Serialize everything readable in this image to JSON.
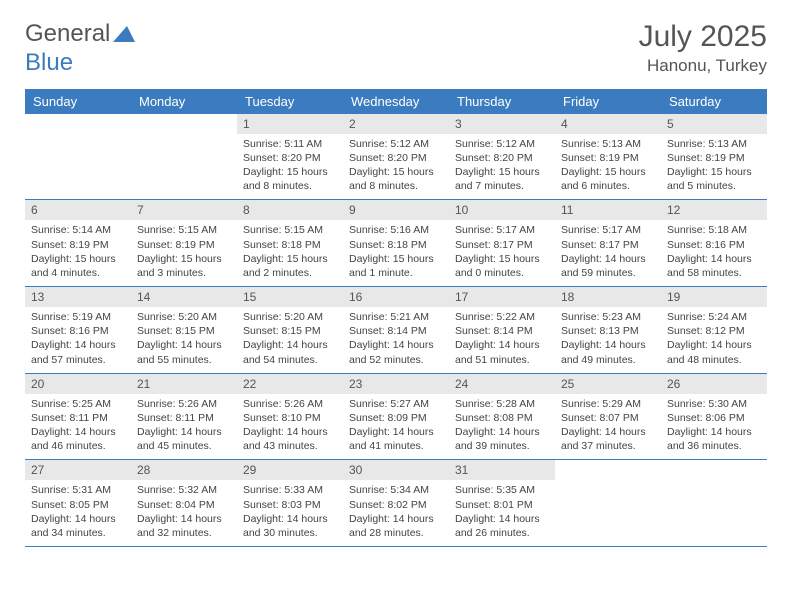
{
  "logo": {
    "text1": "General",
    "text2": "Blue"
  },
  "title": "July 2025",
  "location": "Hanonu, Turkey",
  "colors": {
    "header_bg": "#3b7bbf",
    "header_text": "#ffffff",
    "daynum_bg": "#e8e8e8",
    "border": "#3b7bbf"
  },
  "weekdays": [
    "Sunday",
    "Monday",
    "Tuesday",
    "Wednesday",
    "Thursday",
    "Friday",
    "Saturday"
  ],
  "weeks": [
    [
      null,
      null,
      {
        "n": "1",
        "sr": "5:11 AM",
        "ss": "8:20 PM",
        "dl": "15 hours and 8 minutes."
      },
      {
        "n": "2",
        "sr": "5:12 AM",
        "ss": "8:20 PM",
        "dl": "15 hours and 8 minutes."
      },
      {
        "n": "3",
        "sr": "5:12 AM",
        "ss": "8:20 PM",
        "dl": "15 hours and 7 minutes."
      },
      {
        "n": "4",
        "sr": "5:13 AM",
        "ss": "8:19 PM",
        "dl": "15 hours and 6 minutes."
      },
      {
        "n": "5",
        "sr": "5:13 AM",
        "ss": "8:19 PM",
        "dl": "15 hours and 5 minutes."
      }
    ],
    [
      {
        "n": "6",
        "sr": "5:14 AM",
        "ss": "8:19 PM",
        "dl": "15 hours and 4 minutes."
      },
      {
        "n": "7",
        "sr": "5:15 AM",
        "ss": "8:19 PM",
        "dl": "15 hours and 3 minutes."
      },
      {
        "n": "8",
        "sr": "5:15 AM",
        "ss": "8:18 PM",
        "dl": "15 hours and 2 minutes."
      },
      {
        "n": "9",
        "sr": "5:16 AM",
        "ss": "8:18 PM",
        "dl": "15 hours and 1 minute."
      },
      {
        "n": "10",
        "sr": "5:17 AM",
        "ss": "8:17 PM",
        "dl": "15 hours and 0 minutes."
      },
      {
        "n": "11",
        "sr": "5:17 AM",
        "ss": "8:17 PM",
        "dl": "14 hours and 59 minutes."
      },
      {
        "n": "12",
        "sr": "5:18 AM",
        "ss": "8:16 PM",
        "dl": "14 hours and 58 minutes."
      }
    ],
    [
      {
        "n": "13",
        "sr": "5:19 AM",
        "ss": "8:16 PM",
        "dl": "14 hours and 57 minutes."
      },
      {
        "n": "14",
        "sr": "5:20 AM",
        "ss": "8:15 PM",
        "dl": "14 hours and 55 minutes."
      },
      {
        "n": "15",
        "sr": "5:20 AM",
        "ss": "8:15 PM",
        "dl": "14 hours and 54 minutes."
      },
      {
        "n": "16",
        "sr": "5:21 AM",
        "ss": "8:14 PM",
        "dl": "14 hours and 52 minutes."
      },
      {
        "n": "17",
        "sr": "5:22 AM",
        "ss": "8:14 PM",
        "dl": "14 hours and 51 minutes."
      },
      {
        "n": "18",
        "sr": "5:23 AM",
        "ss": "8:13 PM",
        "dl": "14 hours and 49 minutes."
      },
      {
        "n": "19",
        "sr": "5:24 AM",
        "ss": "8:12 PM",
        "dl": "14 hours and 48 minutes."
      }
    ],
    [
      {
        "n": "20",
        "sr": "5:25 AM",
        "ss": "8:11 PM",
        "dl": "14 hours and 46 minutes."
      },
      {
        "n": "21",
        "sr": "5:26 AM",
        "ss": "8:11 PM",
        "dl": "14 hours and 45 minutes."
      },
      {
        "n": "22",
        "sr": "5:26 AM",
        "ss": "8:10 PM",
        "dl": "14 hours and 43 minutes."
      },
      {
        "n": "23",
        "sr": "5:27 AM",
        "ss": "8:09 PM",
        "dl": "14 hours and 41 minutes."
      },
      {
        "n": "24",
        "sr": "5:28 AM",
        "ss": "8:08 PM",
        "dl": "14 hours and 39 minutes."
      },
      {
        "n": "25",
        "sr": "5:29 AM",
        "ss": "8:07 PM",
        "dl": "14 hours and 37 minutes."
      },
      {
        "n": "26",
        "sr": "5:30 AM",
        "ss": "8:06 PM",
        "dl": "14 hours and 36 minutes."
      }
    ],
    [
      {
        "n": "27",
        "sr": "5:31 AM",
        "ss": "8:05 PM",
        "dl": "14 hours and 34 minutes."
      },
      {
        "n": "28",
        "sr": "5:32 AM",
        "ss": "8:04 PM",
        "dl": "14 hours and 32 minutes."
      },
      {
        "n": "29",
        "sr": "5:33 AM",
        "ss": "8:03 PM",
        "dl": "14 hours and 30 minutes."
      },
      {
        "n": "30",
        "sr": "5:34 AM",
        "ss": "8:02 PM",
        "dl": "14 hours and 28 minutes."
      },
      {
        "n": "31",
        "sr": "5:35 AM",
        "ss": "8:01 PM",
        "dl": "14 hours and 26 minutes."
      },
      null,
      null
    ]
  ],
  "labels": {
    "sunrise": "Sunrise: ",
    "sunset": "Sunset: ",
    "daylight": "Daylight: "
  }
}
